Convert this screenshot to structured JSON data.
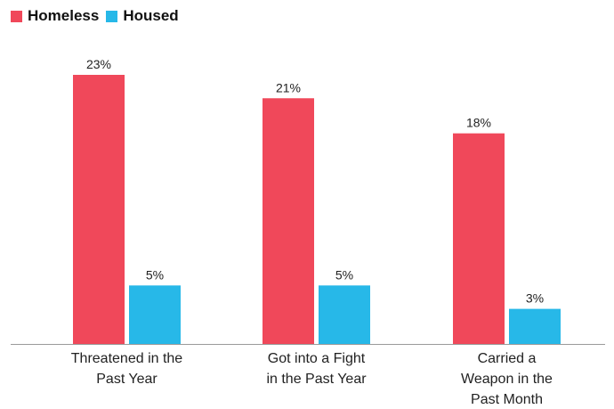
{
  "chart_data": {
    "type": "bar",
    "categories": [
      [
        "Threatened in the",
        "Past Year"
      ],
      [
        "Got into a Fight",
        "in the Past Year"
      ],
      [
        "Carried a",
        "Weapon in the",
        "Past Month"
      ]
    ],
    "series": [
      {
        "name": "Homeless",
        "values": [
          23,
          21,
          18
        ],
        "labels": [
          "23%",
          "21%",
          "18%"
        ],
        "color": "#f0485a"
      },
      {
        "name": "Housed",
        "values": [
          5,
          5,
          3
        ],
        "labels": [
          "5%",
          "5%",
          "3%"
        ],
        "color": "#27b8e8"
      }
    ],
    "ylim": [
      0,
      23
    ],
    "legend_position": "top-left",
    "grid": false
  }
}
